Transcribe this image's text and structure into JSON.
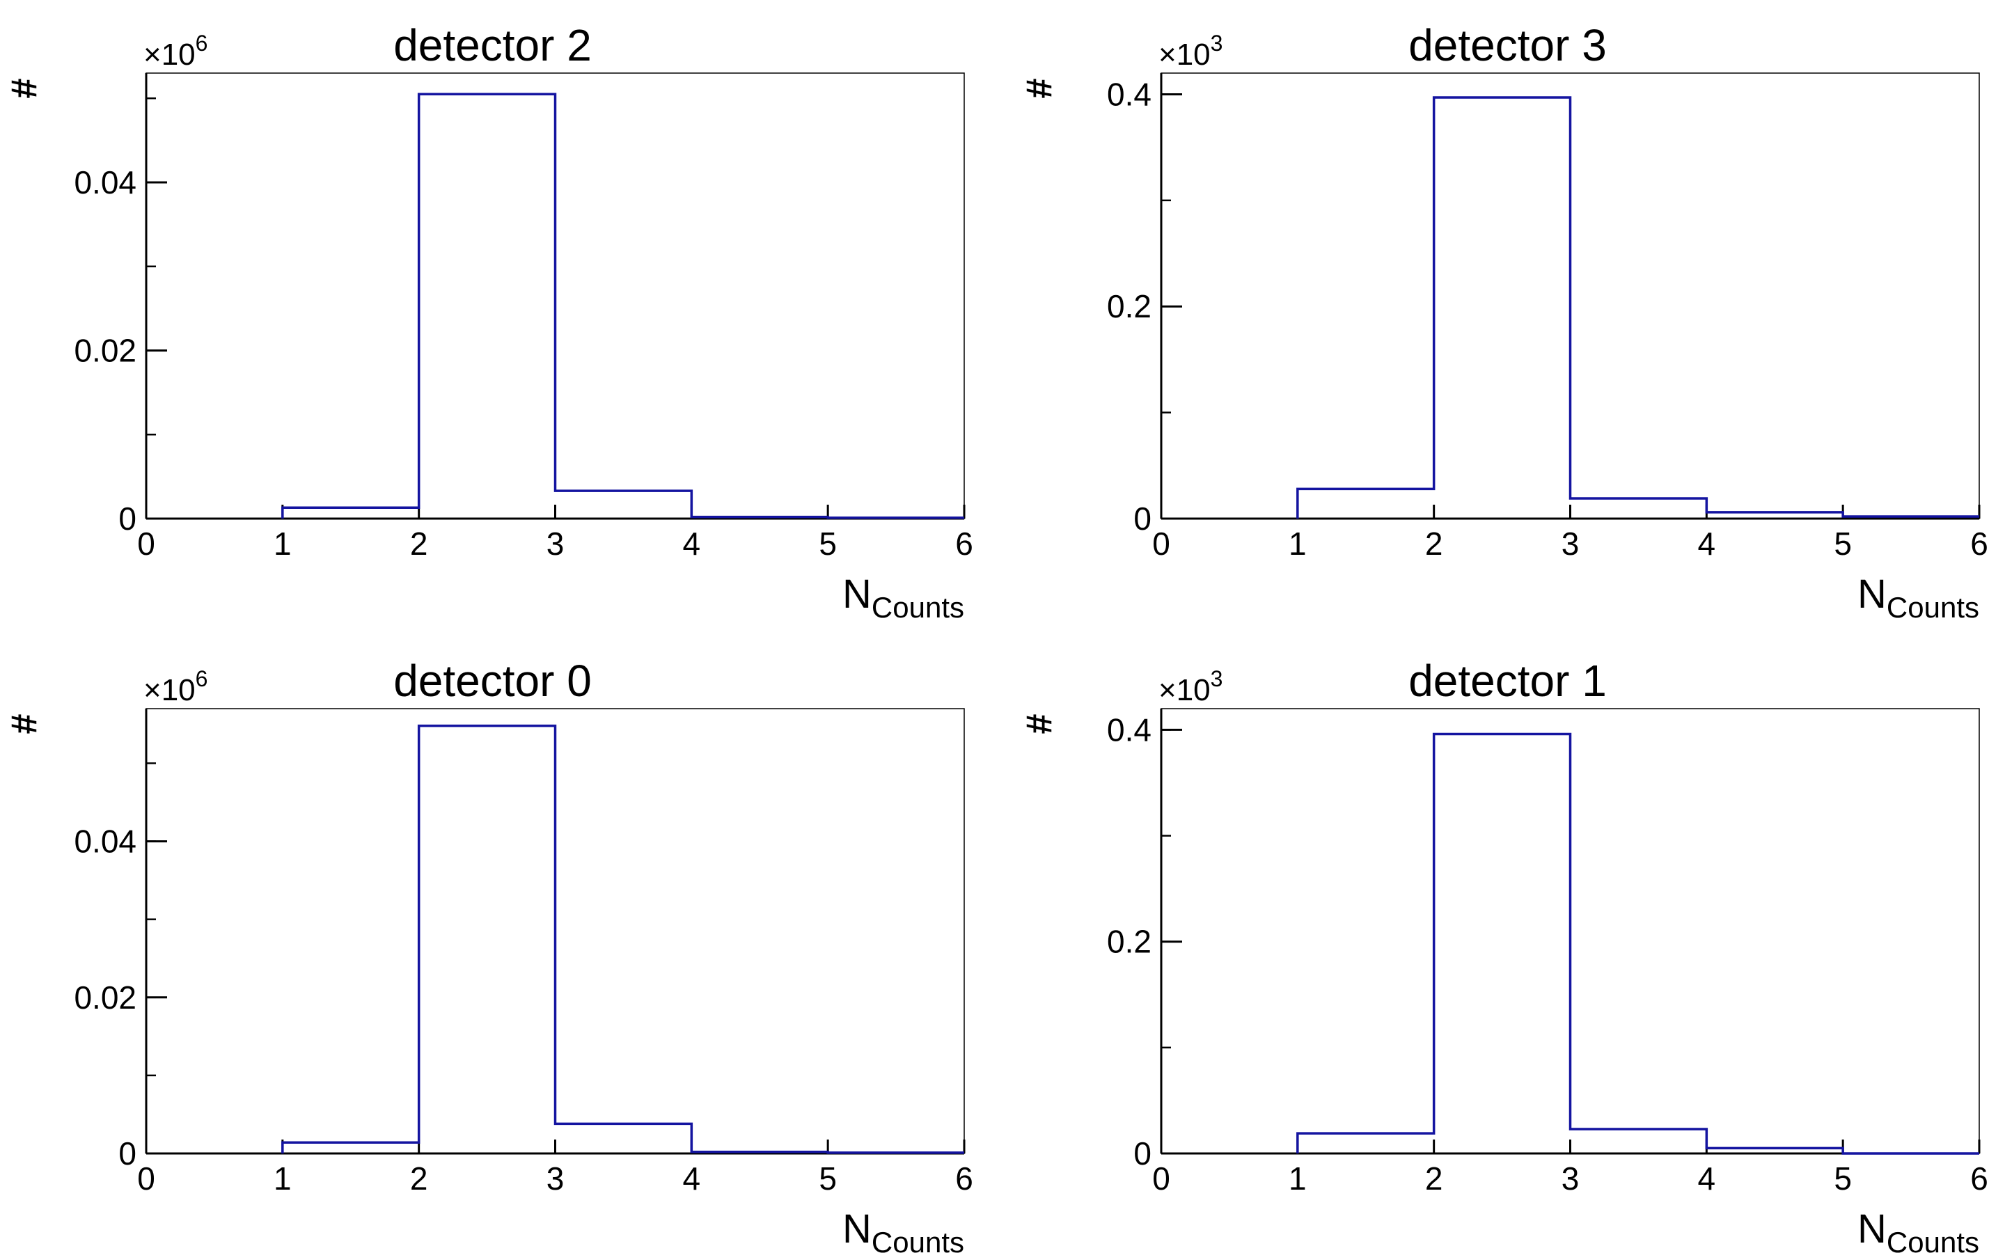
{
  "chart_data": [
    {
      "type": "bar",
      "title": "detector 2",
      "xlabel": "N",
      "xlabel_sub": "Counts",
      "ylabel": "#",
      "multiplier_base": "×10",
      "multiplier_exp": "6",
      "xlim": [
        0,
        6
      ],
      "ylim": [
        0,
        0.053
      ],
      "bin_edges": [
        0,
        1,
        2,
        3,
        4,
        5,
        6
      ],
      "values": [
        0,
        0.0013,
        0.0505,
        0.0033,
        0.0002,
        0.0001
      ],
      "x_ticks": [
        "0",
        "1",
        "2",
        "3",
        "4",
        "5",
        "6"
      ],
      "y_ticks": [
        {
          "v": 0,
          "label": "0"
        },
        {
          "v": 0.02,
          "label": "0.02"
        },
        {
          "v": 0.04,
          "label": "0.04"
        }
      ],
      "y_minor_step": 0.01,
      "line_color": "#1414a0",
      "grid": false
    },
    {
      "type": "bar",
      "title": "detector 3",
      "xlabel": "N",
      "xlabel_sub": "Counts",
      "ylabel": "#",
      "multiplier_base": "×10",
      "multiplier_exp": "3",
      "xlim": [
        0,
        6
      ],
      "ylim": [
        0,
        0.42
      ],
      "bin_edges": [
        0,
        1,
        2,
        3,
        4,
        5,
        6
      ],
      "values": [
        0,
        0.028,
        0.397,
        0.019,
        0.006,
        0.002
      ],
      "x_ticks": [
        "0",
        "1",
        "2",
        "3",
        "4",
        "5",
        "6"
      ],
      "y_ticks": [
        {
          "v": 0,
          "label": "0"
        },
        {
          "v": 0.2,
          "label": "0.2"
        },
        {
          "v": 0.4,
          "label": "0.4"
        }
      ],
      "y_minor_step": 0.1,
      "line_color": "#1414a0",
      "grid": false
    },
    {
      "type": "bar",
      "title": "detector 0",
      "xlabel": "N",
      "xlabel_sub": "Counts",
      "ylabel": "#",
      "multiplier_base": "×10",
      "multiplier_exp": "6",
      "xlim": [
        0,
        6
      ],
      "ylim": [
        0,
        0.057
      ],
      "bin_edges": [
        0,
        1,
        2,
        3,
        4,
        5,
        6
      ],
      "values": [
        0,
        0.0014,
        0.0548,
        0.0038,
        0.0002,
        0.0001
      ],
      "x_ticks": [
        "0",
        "1",
        "2",
        "3",
        "4",
        "5",
        "6"
      ],
      "y_ticks": [
        {
          "v": 0,
          "label": "0"
        },
        {
          "v": 0.02,
          "label": "0.02"
        },
        {
          "v": 0.04,
          "label": "0.04"
        }
      ],
      "y_minor_step": 0.01,
      "line_color": "#1414a0",
      "grid": false
    },
    {
      "type": "bar",
      "title": "detector 1",
      "xlabel": "N",
      "xlabel_sub": "Counts",
      "ylabel": "#",
      "multiplier_base": "×10",
      "multiplier_exp": "3",
      "xlim": [
        0,
        6
      ],
      "ylim": [
        0,
        0.42
      ],
      "bin_edges": [
        0,
        1,
        2,
        3,
        4,
        5,
        6
      ],
      "values": [
        0,
        0.019,
        0.396,
        0.023,
        0.005,
        0
      ],
      "x_ticks": [
        "0",
        "1",
        "2",
        "3",
        "4",
        "5",
        "6"
      ],
      "y_ticks": [
        {
          "v": 0,
          "label": "0"
        },
        {
          "v": 0.2,
          "label": "0.2"
        },
        {
          "v": 0.4,
          "label": "0.4"
        }
      ],
      "y_minor_step": 0.1,
      "line_color": "#1414a0",
      "grid": false
    }
  ]
}
